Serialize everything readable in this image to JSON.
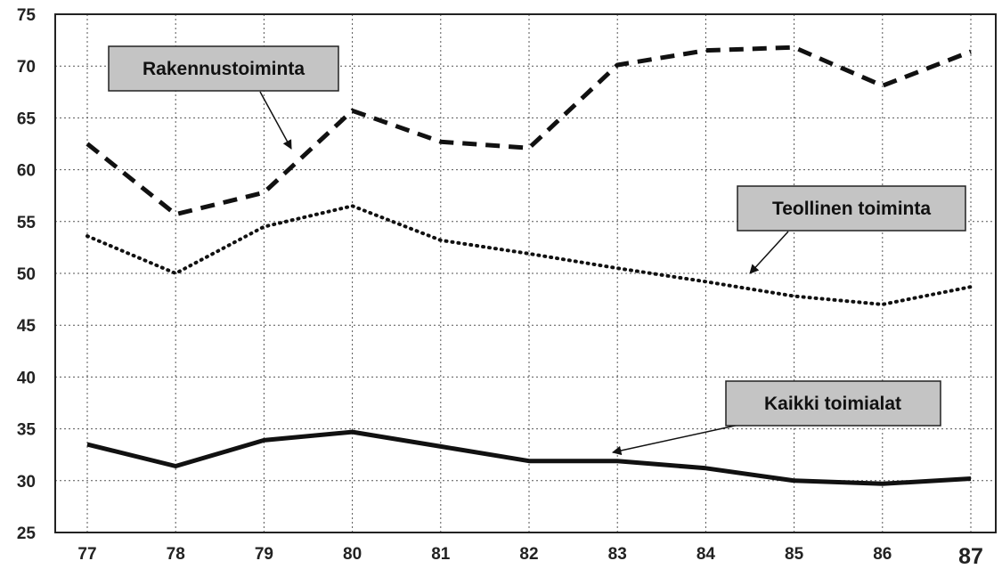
{
  "chart_data": {
    "type": "line",
    "x": [
      "77",
      "78",
      "79",
      "80",
      "81",
      "82",
      "83",
      "84",
      "85",
      "86",
      "87"
    ],
    "ylim": [
      25,
      75
    ],
    "yticks": [
      "25",
      "30",
      "35",
      "40",
      "45",
      "50",
      "55",
      "60",
      "65",
      "70",
      "75"
    ],
    "grid": true,
    "series": [
      {
        "name": "Rakennustoiminta",
        "style": "dashed",
        "values": [
          62.5,
          55.7,
          57.8,
          65.7,
          62.7,
          62.1,
          70.1,
          71.5,
          71.8,
          68.1,
          71.4
        ]
      },
      {
        "name": "Teollinen toiminta",
        "style": "dotted",
        "values": [
          53.6,
          50.0,
          54.5,
          56.5,
          53.2,
          51.9,
          50.5,
          49.2,
          47.8,
          47.0,
          48.7
        ]
      },
      {
        "name": "Kaikki toimialat",
        "style": "solid",
        "values": [
          33.5,
          31.4,
          33.9,
          34.7,
          33.3,
          31.9,
          31.9,
          31.2,
          30.0,
          29.7,
          30.2
        ]
      }
    ],
    "annotations": [
      "Rakennustoiminta",
      "Teollinen toiminta",
      "Kaikki toimialat"
    ]
  },
  "colors": {
    "line": "#111111",
    "box": "#c4c4c4",
    "grid": "#555555"
  }
}
